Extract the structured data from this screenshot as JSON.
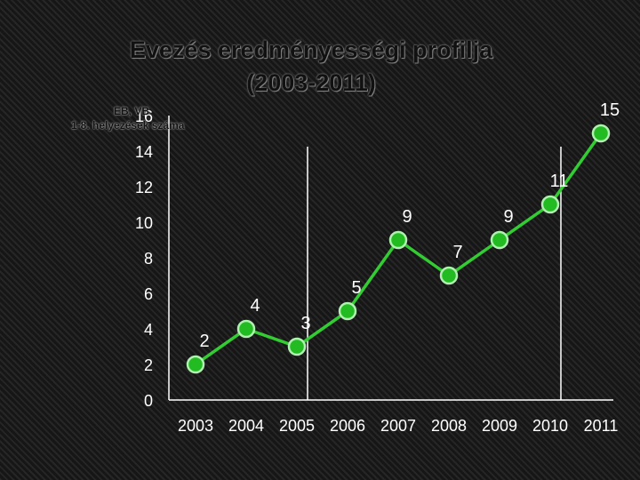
{
  "chart_data": {
    "type": "line",
    "title_line1": "Evezés eredményességi profilja",
    "title_line2": "(2003-2011)",
    "legend_line1": "EB, VB",
    "legend_line2": "1-8. helyezések száma",
    "categories": [
      "2003",
      "2004",
      "2005",
      "2006",
      "2007",
      "2008",
      "2009",
      "2010",
      "2011"
    ],
    "values": [
      2,
      4,
      3,
      5,
      9,
      7,
      9,
      11,
      15
    ],
    "ylim": [
      0,
      16
    ],
    "yticks": [
      0,
      2,
      4,
      6,
      8,
      10,
      12,
      14,
      16
    ],
    "vertical_markers": [
      "2005",
      "2010"
    ],
    "colors": {
      "line": "#33cc33",
      "marker_fill": "#22bb22",
      "marker_stroke": "#b0f0b0"
    }
  }
}
